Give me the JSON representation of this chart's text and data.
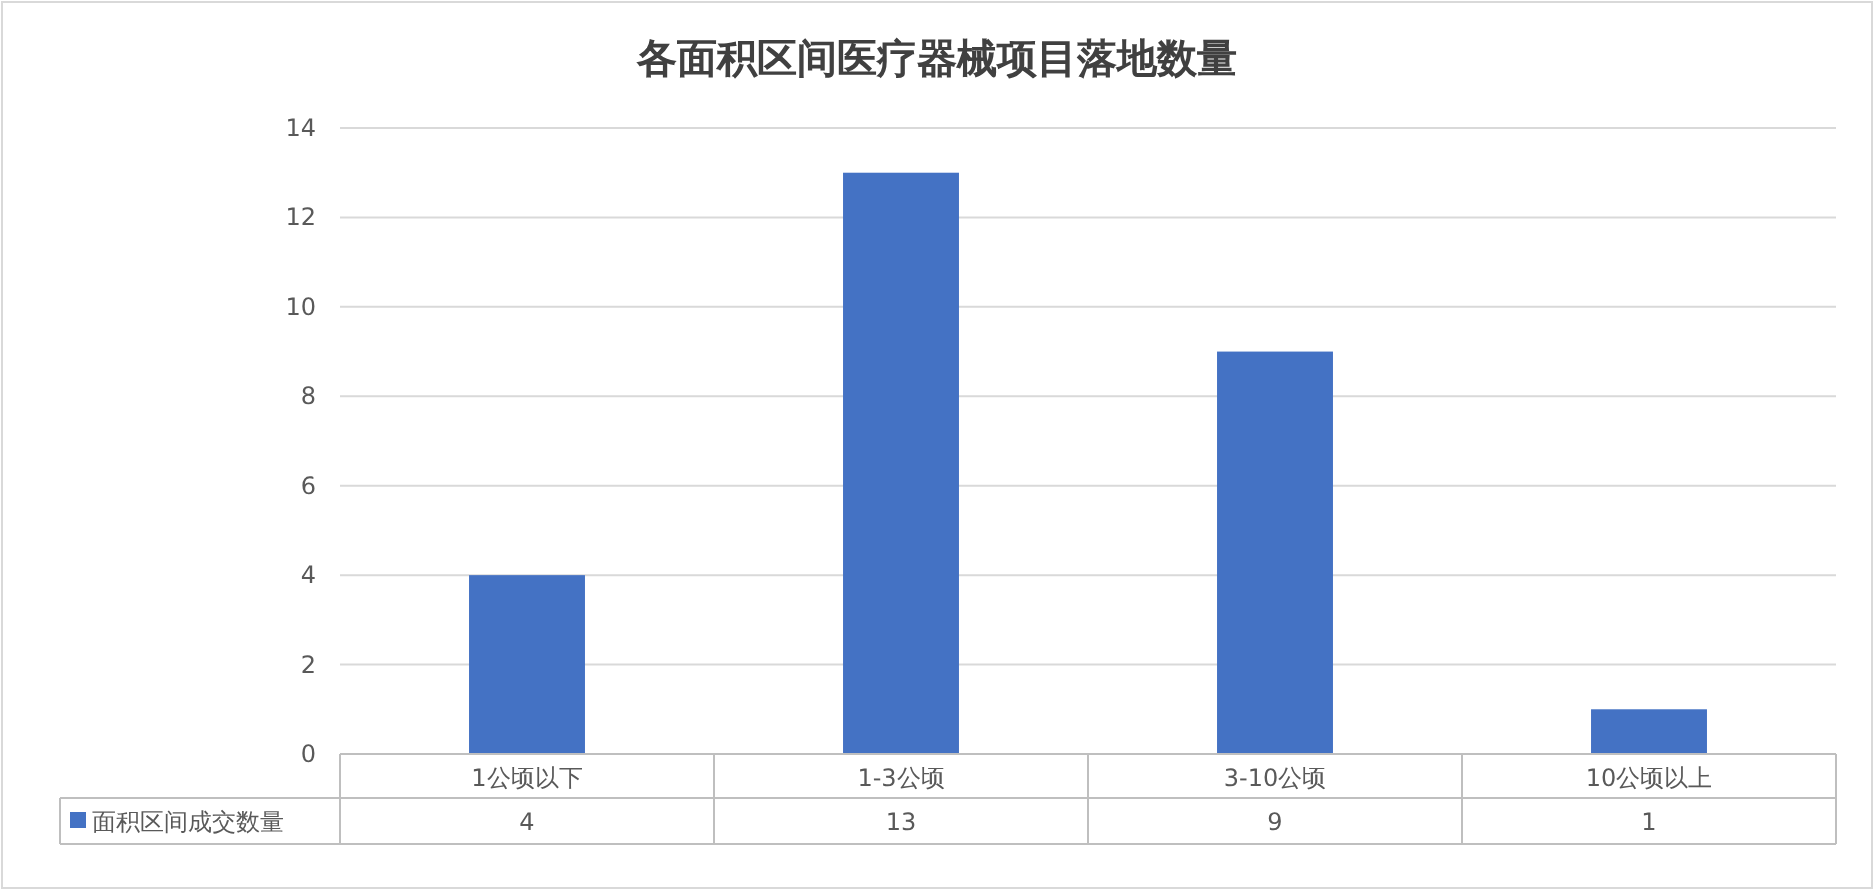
{
  "chart_data": {
    "type": "bar",
    "title": "各面积区间医疗器械项目落地数量",
    "categories": [
      "1公顷以下",
      "1-3公顷",
      "3-10公顷",
      "10公顷以上"
    ],
    "series": [
      {
        "name": "面积区间成交数量",
        "color": "#4472c4",
        "values": [
          4,
          13,
          9,
          1
        ]
      }
    ],
    "ylim": [
      0,
      14
    ],
    "yticks": [
      0,
      2,
      4,
      6,
      8,
      10,
      12,
      14
    ],
    "grid": "y",
    "data_labels": true,
    "legend": "bottom"
  }
}
